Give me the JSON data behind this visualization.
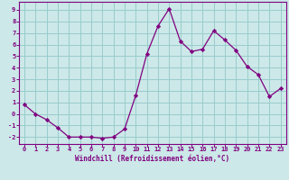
{
  "x": [
    0,
    1,
    2,
    3,
    4,
    5,
    6,
    7,
    8,
    9,
    10,
    11,
    12,
    13,
    14,
    15,
    16,
    17,
    18,
    19,
    20,
    21,
    22,
    23
  ],
  "y": [
    0.8,
    0.0,
    -0.5,
    -1.2,
    -2.0,
    -2.0,
    -2.0,
    -2.1,
    -2.0,
    -1.3,
    1.6,
    5.2,
    7.6,
    9.1,
    6.3,
    5.4,
    5.6,
    7.2,
    6.4,
    5.5,
    4.1,
    3.4,
    1.5,
    2.2
  ],
  "x_ticks": [
    0,
    1,
    2,
    3,
    4,
    5,
    6,
    7,
    8,
    9,
    10,
    11,
    12,
    13,
    14,
    15,
    16,
    17,
    18,
    19,
    20,
    21,
    22,
    23
  ],
  "y_ticks": [
    -2,
    -1,
    0,
    1,
    2,
    3,
    4,
    5,
    6,
    7,
    8,
    9
  ],
  "ylim": [
    -2.6,
    9.7
  ],
  "xlim": [
    -0.5,
    23.5
  ],
  "xlabel": "Windchill (Refroidissement éolien,°C)",
  "line_color": "#800080",
  "marker_color": "#800080",
  "bg_color": "#cce8e8",
  "grid_color": "#99cccc",
  "axis_label_color": "#800080",
  "tick_color": "#800080"
}
